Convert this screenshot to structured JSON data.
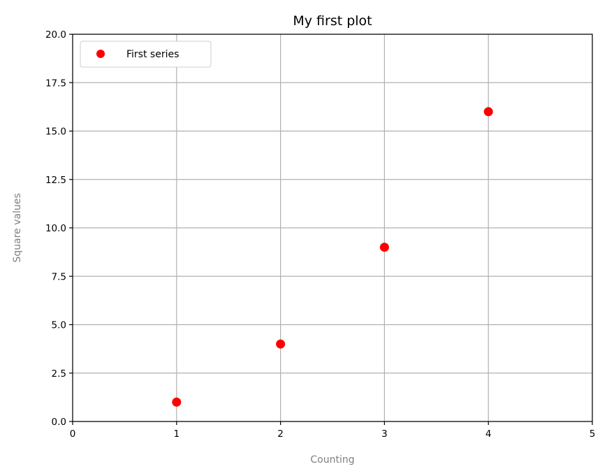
{
  "chart_data": {
    "type": "scatter",
    "title": "My first plot",
    "xlabel": "Counting",
    "ylabel": "Square values",
    "xlim": [
      0,
      5
    ],
    "ylim": [
      0,
      20
    ],
    "xticks": [
      0,
      1,
      2,
      3,
      4,
      5
    ],
    "xtick_labels": [
      "0",
      "1",
      "2",
      "3",
      "4",
      "5"
    ],
    "yticks": [
      0,
      2.5,
      5,
      7.5,
      10,
      12.5,
      15,
      17.5,
      20
    ],
    "ytick_labels": [
      "0.0",
      "2.5",
      "5.0",
      "7.5",
      "10.0",
      "12.5",
      "15.0",
      "17.5",
      "20.0"
    ],
    "grid": true,
    "legend_position": "top-left",
    "series": [
      {
        "name": "First series",
        "marker": "circle",
        "color": "#ff0000",
        "x": [
          1,
          2,
          3,
          4
        ],
        "y": [
          1,
          4,
          9,
          16
        ]
      }
    ],
    "colors": {
      "axis_label": "#808080",
      "grid": "#b0b0b0"
    }
  }
}
